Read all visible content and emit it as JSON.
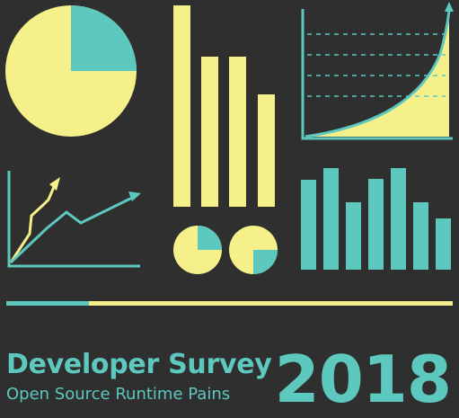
{
  "colors": {
    "background": "#2f2f2f",
    "yellow": "#f5f08a",
    "teal": "#5cc8be"
  },
  "icons": [
    "pie-chart-icon",
    "bar-chart-icon",
    "exponential-area-chart-icon",
    "trend-lines-icon",
    "small-pie-charts-icon",
    "teal-bar-chart-icon"
  ],
  "header": {
    "title": "Developer Survey",
    "subtitle": "Open Source Runtime Pains",
    "year": "2018"
  }
}
